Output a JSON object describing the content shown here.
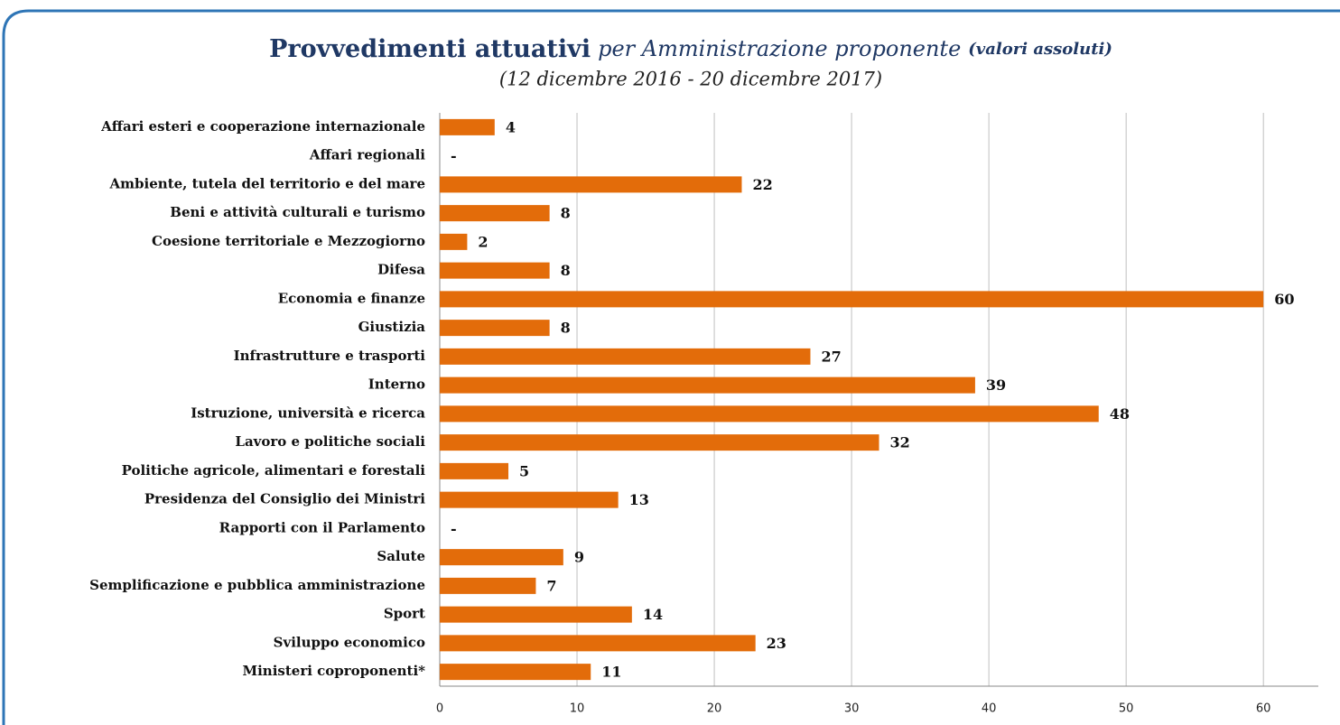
{
  "chart_data": {
    "type": "bar",
    "orientation": "horizontal",
    "title": [
      "Provvedimenti attuativi",
      "per Amministrazione proponente",
      "(valori assoluti)"
    ],
    "subtitle": "(12 dicembre 2016 - 20 dicembre 2017)",
    "categories": [
      "Affari esteri e cooperazione internazionale",
      "Affari regionali",
      "Ambiente, tutela del territorio e del mare",
      "Beni e attività culturali e turismo",
      "Coesione territoriale e Mezzogiorno",
      "Difesa",
      "Economia e finanze",
      "Giustizia",
      "Infrastrutture e trasporti",
      "Interno",
      "Istruzione, università e ricerca",
      "Lavoro e politiche sociali",
      "Politiche agricole, alimentari e forestali",
      "Presidenza del Consiglio dei Ministri",
      "Rapporti con il Parlamento",
      "Salute",
      "Semplificazione e pubblica amministrazione",
      "Sport",
      "Sviluppo economico",
      "Ministeri coproponenti*"
    ],
    "values": [
      4,
      0,
      22,
      8,
      2,
      8,
      60,
      8,
      27,
      39,
      48,
      32,
      5,
      13,
      0,
      9,
      7,
      14,
      23,
      11
    ],
    "value_labels": [
      "4",
      "-",
      "22",
      "8",
      "2",
      "8",
      "60",
      "8",
      "27",
      "39",
      "48",
      "32",
      "5",
      "13",
      "-",
      "9",
      "7",
      "14",
      "23",
      "11"
    ],
    "color": "#e36c0a",
    "xlim": [
      0,
      64
    ],
    "xticks": [
      0,
      10,
      20,
      30,
      40,
      50,
      60
    ],
    "grid": true
  }
}
